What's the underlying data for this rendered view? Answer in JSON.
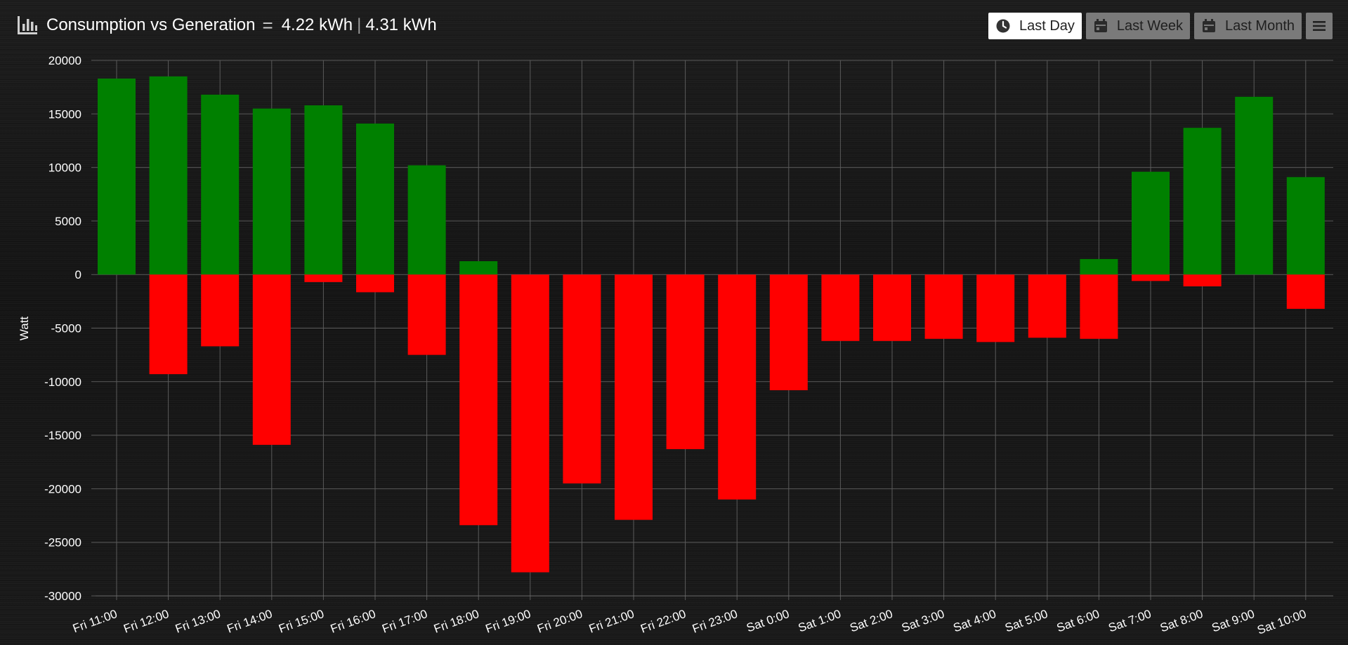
{
  "header": {
    "title": "Consumption vs Generation",
    "consumption": "4.22 kWh",
    "separator": "|",
    "generation": "4.31 kWh"
  },
  "toolbar": {
    "last_day": "Last Day",
    "last_week": "Last Week",
    "last_month": "Last Month",
    "active": "last_day"
  },
  "icons": {
    "header": "bar-chart-icon",
    "equals": "equals-icon",
    "last_day": "clock-icon",
    "last_week": "calendar-icon",
    "last_month": "calendar-icon",
    "menu": "hamburger-menu-icon"
  },
  "colors": {
    "generation": "#008000",
    "consumption": "#ff0000",
    "background": "#161616",
    "grid": "#5a5a5a"
  },
  "chart_data": {
    "type": "bar",
    "title": "Consumption vs Generation",
    "ylabel": "Watt",
    "xlabel": "",
    "ylim": [
      -30000,
      20000
    ],
    "yticks": [
      20000,
      15000,
      10000,
      5000,
      0,
      -5000,
      -10000,
      -15000,
      -20000,
      -25000,
      -30000
    ],
    "grid": true,
    "stacked": true,
    "categories": [
      "Fri 11:00",
      "Fri 12:00",
      "Fri 13:00",
      "Fri 14:00",
      "Fri 15:00",
      "Fri 16:00",
      "Fri 17:00",
      "Fri 18:00",
      "Fri 19:00",
      "Fri 20:00",
      "Fri 21:00",
      "Fri 22:00",
      "Fri 23:00",
      "Sat 0:00",
      "Sat 1:00",
      "Sat 2:00",
      "Sat 3:00",
      "Sat 4:00",
      "Sat 5:00",
      "Sat 6:00",
      "Sat 7:00",
      "Sat 8:00",
      "Sat 9:00",
      "Sat 10:00"
    ],
    "series": [
      {
        "color": "#008000",
        "values": [
          18300,
          18500,
          16800,
          15500,
          15800,
          14100,
          10200,
          1250,
          0,
          0,
          0,
          0,
          0,
          0,
          0,
          0,
          0,
          0,
          0,
          1450,
          9600,
          13700,
          16600,
          9100
        ]
      },
      {
        "color": "#ff0000",
        "values": [
          0,
          -9300,
          -6700,
          -15900,
          -700,
          -1650,
          -7500,
          -23400,
          -27800,
          -19500,
          -22900,
          -16300,
          -21000,
          -10800,
          -6200,
          -6200,
          -6000,
          -6300,
          -5900,
          -6000,
          -600,
          -1100,
          0,
          -3200
        ]
      }
    ]
  }
}
